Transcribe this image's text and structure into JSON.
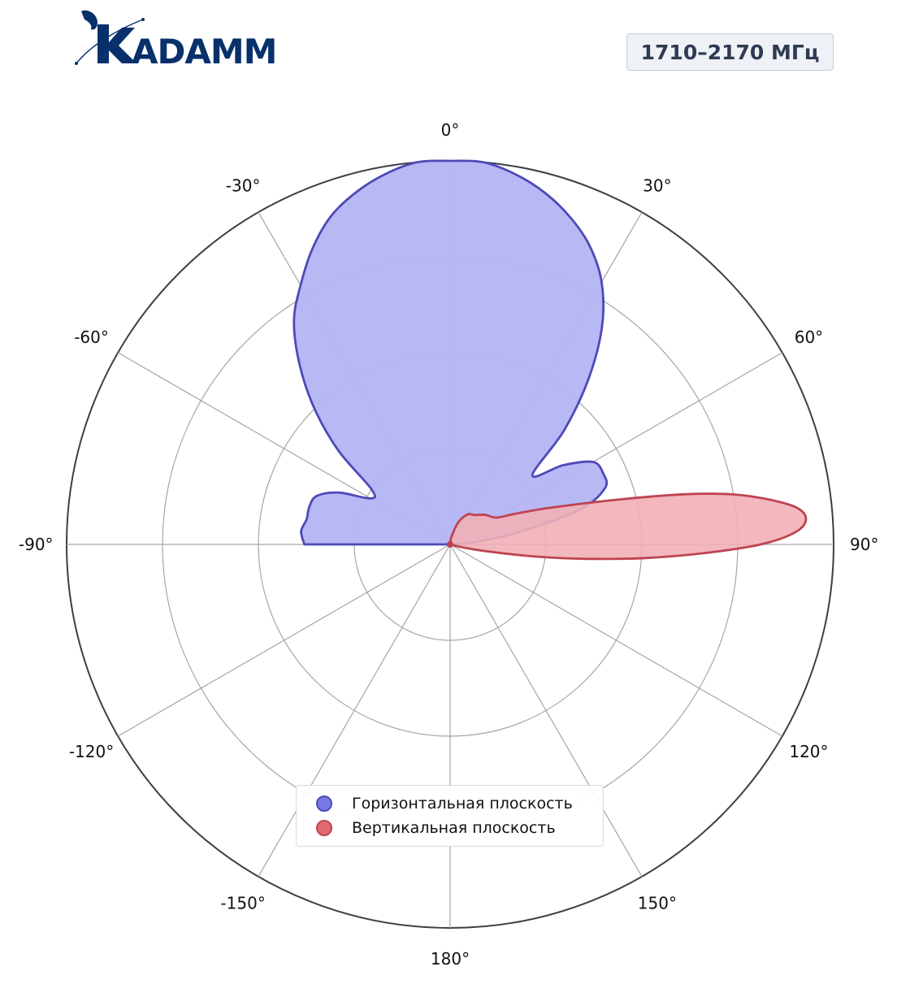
{
  "logo": {
    "text": "KADAMM",
    "color": "#08306b"
  },
  "frequency_badge": "1710–2170 МГц",
  "colors": {
    "horizontal_fill": "#b4b4f4",
    "horizontal_line": "#4d4ab7",
    "vertical_fill": "#f1b0b6",
    "vertical_line": "#be4450",
    "grid": "#a6a6a6",
    "outer_ring": "#3b3f47"
  },
  "legend": {
    "placement": "lower-center",
    "items": [
      {
        "label": "Горизонтальная плоскость",
        "fill": "#7878e6",
        "stroke": "#4d4ab7"
      },
      {
        "label": "Вертикальная плоскость",
        "fill": "#e26a72",
        "stroke": "#be4450"
      }
    ]
  },
  "chart_data": {
    "type": "polar",
    "angle_ticks": [
      "0°",
      "30°",
      "60°",
      "90°",
      "120°",
      "150°",
      "180°",
      "-150°",
      "-120°",
      "-90°",
      "-60°",
      "-30°"
    ],
    "angle_tick_values": [
      0,
      30,
      60,
      90,
      120,
      150,
      180,
      -150,
      -120,
      -90,
      -60,
      -30
    ],
    "radial_range": [
      0,
      1
    ],
    "radial_gridlines": [
      0.25,
      0.5,
      0.75,
      1.0
    ],
    "grid": true,
    "series": [
      {
        "name": "Горизонтальная плоскость",
        "points": [
          [
            -90,
            0.38
          ],
          [
            -85,
            0.39
          ],
          [
            -80,
            0.38
          ],
          [
            -75,
            0.38
          ],
          [
            -70,
            0.37
          ],
          [
            -65,
            0.32
          ],
          [
            -60,
            0.24
          ],
          [
            -55,
            0.25
          ],
          [
            -50,
            0.38
          ],
          [
            -45,
            0.5
          ],
          [
            -40,
            0.61
          ],
          [
            -35,
            0.71
          ],
          [
            -30,
            0.78
          ],
          [
            -25,
            0.85
          ],
          [
            -20,
            0.91
          ],
          [
            -15,
            0.95
          ],
          [
            -10,
            0.98
          ],
          [
            -5,
            1.0
          ],
          [
            0,
            1.0
          ],
          [
            5,
            1.0
          ],
          [
            10,
            0.98
          ],
          [
            15,
            0.95
          ],
          [
            20,
            0.91
          ],
          [
            25,
            0.86
          ],
          [
            30,
            0.79
          ],
          [
            35,
            0.69
          ],
          [
            40,
            0.56
          ],
          [
            45,
            0.42
          ],
          [
            50,
            0.28
          ],
          [
            55,
            0.36
          ],
          [
            60,
            0.43
          ],
          [
            65,
            0.44
          ],
          [
            70,
            0.43
          ],
          [
            75,
            0.35
          ],
          [
            80,
            0.18
          ],
          [
            85,
            0.06
          ],
          [
            90,
            0.0
          ]
        ]
      },
      {
        "name": "Вертикальная плоскость",
        "points": [
          [
            0,
            0.0
          ],
          [
            10,
            0.02
          ],
          [
            20,
            0.06
          ],
          [
            30,
            0.09
          ],
          [
            40,
            0.1
          ],
          [
            50,
            0.12
          ],
          [
            60,
            0.14
          ],
          [
            65,
            0.19
          ],
          [
            70,
            0.28
          ],
          [
            75,
            0.45
          ],
          [
            78,
            0.63
          ],
          [
            80,
            0.75
          ],
          [
            82,
            0.84
          ],
          [
            84,
            0.91
          ],
          [
            86,
            0.93
          ],
          [
            88,
            0.9
          ],
          [
            90,
            0.81
          ],
          [
            92,
            0.66
          ],
          [
            94,
            0.51
          ],
          [
            96,
            0.36
          ],
          [
            98,
            0.23
          ],
          [
            100,
            0.12
          ],
          [
            103,
            0.04
          ],
          [
            106,
            0.0
          ]
        ]
      }
    ]
  }
}
